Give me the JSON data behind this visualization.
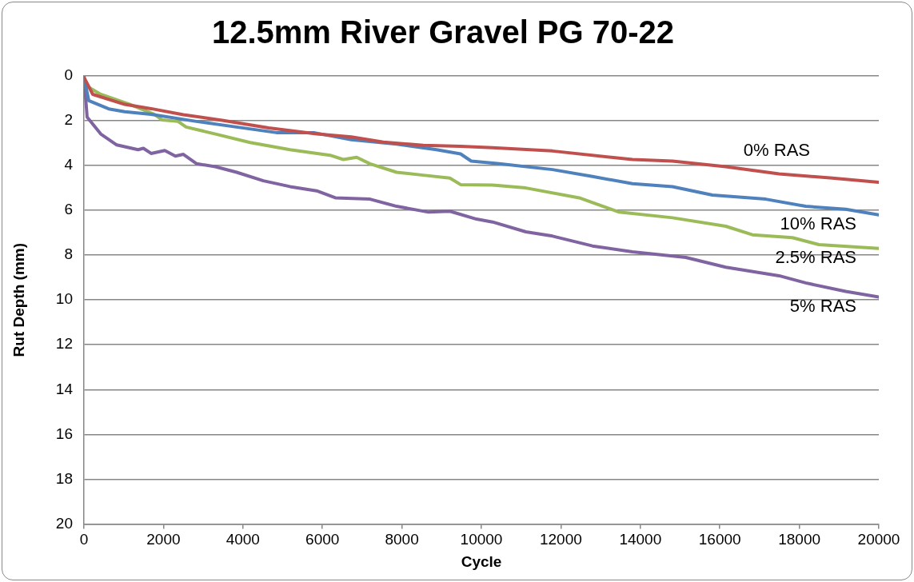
{
  "chart_data": {
    "type": "line",
    "title": "12.5mm River Gravel PG 70-22",
    "xlabel": "Cycle",
    "ylabel": "Rut Depth (mm)",
    "xlim": [
      0,
      20000
    ],
    "xticks": [
      0,
      2000,
      4000,
      6000,
      8000,
      10000,
      12000,
      14000,
      16000,
      18000,
      20000
    ],
    "ylim": [
      20,
      0
    ],
    "yticks": [
      0,
      2,
      4,
      6,
      8,
      10,
      12,
      14,
      16,
      18,
      20
    ],
    "grid": "y",
    "legend": false,
    "marker": "none",
    "line_style": "solid",
    "series": [
      {
        "name": "0% RAS",
        "color": "#c0504d",
        "x": [
          0,
          221,
          1026,
          1690,
          2502,
          3510,
          4648,
          5855,
          6727,
          7532,
          8537,
          9476,
          10281,
          11790,
          13802,
          14808,
          16149,
          17490,
          18831,
          20000
        ],
        "values": [
          0.06,
          0.82,
          1.27,
          1.46,
          1.73,
          1.99,
          2.32,
          2.59,
          2.72,
          2.95,
          3.1,
          3.14,
          3.2,
          3.35,
          3.73,
          3.8,
          4.05,
          4.37,
          4.56,
          4.75
        ]
      },
      {
        "name": "10% RAS",
        "color": "#4f81bd",
        "x": [
          0,
          121,
          623,
          1026,
          1690,
          2830,
          3836,
          4842,
          5781,
          6727,
          7867,
          8872,
          9476,
          9744,
          10449,
          11790,
          12796,
          13802,
          14808,
          15814,
          17155,
          18161,
          19167,
          20000
        ],
        "values": [
          0.06,
          1.1,
          1.47,
          1.6,
          1.71,
          2.03,
          2.28,
          2.53,
          2.53,
          2.85,
          3.04,
          3.29,
          3.48,
          3.8,
          3.92,
          4.18,
          4.49,
          4.81,
          4.94,
          5.32,
          5.5,
          5.82,
          5.95,
          6.2
        ]
      },
      {
        "name": "2.5% RAS",
        "color": "#9bbb59",
        "x": [
          0,
          53,
          422,
          1160,
          1764,
          1965,
          2368,
          2569,
          3306,
          4179,
          5185,
          6191,
          6526,
          6862,
          7197,
          7867,
          8537,
          9208,
          9476,
          10281,
          11120,
          12461,
          13467,
          14808,
          16149,
          16820,
          17826,
          18496,
          20000
        ],
        "values": [
          0.06,
          0.44,
          0.82,
          1.27,
          1.71,
          1.96,
          2.03,
          2.28,
          2.59,
          2.97,
          3.29,
          3.54,
          3.73,
          3.63,
          3.92,
          4.3,
          4.43,
          4.56,
          4.85,
          4.87,
          5.0,
          5.44,
          6.08,
          6.33,
          6.71,
          7.09,
          7.22,
          7.53,
          7.7
        ]
      },
      {
        "name": "5% RAS",
        "color": "#8064a2",
        "x": [
          0,
          80,
          422,
          825,
          1361,
          1495,
          1690,
          2033,
          2301,
          2502,
          2837,
          3306,
          3843,
          4514,
          5185,
          5855,
          6325,
          7197,
          7867,
          8671,
          9208,
          9878,
          10281,
          11120,
          11790,
          12796,
          13802,
          15143,
          16149,
          17490,
          18161,
          19167,
          20000
        ],
        "values": [
          0,
          1.84,
          2.59,
          3.08,
          3.29,
          3.23,
          3.46,
          3.33,
          3.58,
          3.5,
          3.92,
          4.05,
          4.3,
          4.68,
          4.94,
          5.13,
          5.44,
          5.5,
          5.82,
          6.08,
          6.04,
          6.39,
          6.52,
          6.96,
          7.15,
          7.59,
          7.85,
          8.1,
          8.54,
          8.92,
          9.24,
          9.62,
          9.87
        ]
      }
    ]
  }
}
